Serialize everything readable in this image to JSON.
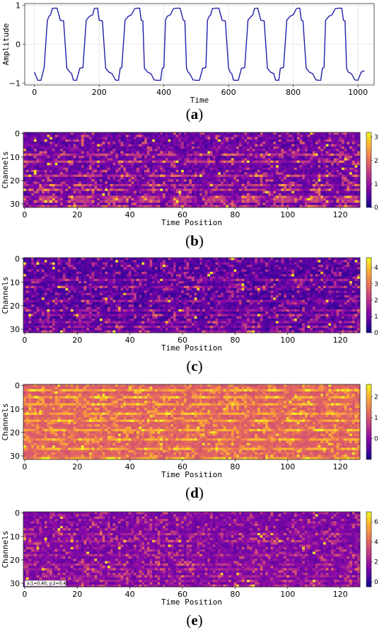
{
  "chart_data": [
    {
      "panel": "a",
      "type": "line",
      "caption": "(a)",
      "xlabel": "Time",
      "ylabel": "Amplitude",
      "xlim": [
        -30,
        1050
      ],
      "ylim": [
        -1.05,
        1.05
      ],
      "xticks": [
        "0",
        "200",
        "400",
        "600",
        "800",
        "1000"
      ],
      "yticks": [
        "−1",
        "0",
        "1"
      ],
      "grid": true,
      "color": "#1f1fa8",
      "series": [
        {
          "x": [
            0,
            10,
            20,
            30,
            40,
            45,
            50,
            55,
            60,
            70,
            80,
            90,
            100,
            110,
            115,
            120,
            125,
            130,
            140,
            150,
            160,
            170,
            180,
            185,
            190,
            195,
            200,
            210,
            220,
            230,
            240,
            250,
            255,
            260,
            265,
            270,
            280,
            290,
            300,
            310,
            320,
            325,
            330,
            335,
            340,
            350,
            360,
            370,
            380,
            390,
            395,
            400,
            405,
            410,
            420,
            430,
            440,
            450,
            460,
            465,
            470,
            475,
            480,
            490,
            500,
            510,
            520,
            530,
            535,
            540,
            545,
            550,
            560,
            570,
            580,
            590,
            600,
            605,
            610,
            615,
            620,
            630,
            640,
            650,
            660,
            670,
            675,
            680,
            685,
            690,
            700,
            710,
            720,
            730,
            740,
            745,
            750,
            755,
            760,
            770,
            780,
            790,
            800,
            810,
            815,
            820,
            825,
            830,
            840,
            850,
            860,
            870,
            880,
            885,
            890,
            895,
            900,
            910,
            920,
            930,
            940,
            950,
            955,
            960,
            965,
            970,
            980,
            990,
            1000,
            1010,
            1020
          ],
          "y": [
            -0.72,
            -0.93,
            -0.93,
            -0.6,
            0.62,
            0.72,
            0.76,
            0.92,
            0.93,
            0.93,
            0.62,
            0.6,
            -0.62,
            -0.72,
            -0.76,
            -0.92,
            -0.93,
            -0.93,
            -0.62,
            -0.6,
            0.62,
            0.72,
            0.76,
            0.92,
            0.93,
            0.93,
            0.62,
            0.6,
            -0.62,
            -0.72,
            -0.76,
            -0.92,
            -0.93,
            -0.93,
            -0.62,
            -0.6,
            0.62,
            0.72,
            0.76,
            0.92,
            0.93,
            0.93,
            0.62,
            0.6,
            -0.62,
            -0.72,
            -0.76,
            -0.92,
            -0.93,
            -0.93,
            -0.62,
            -0.6,
            0.62,
            0.72,
            0.76,
            0.92,
            0.93,
            0.93,
            0.62,
            0.6,
            -0.62,
            -0.72,
            -0.76,
            -0.92,
            -0.93,
            -0.93,
            -0.62,
            -0.6,
            0.62,
            0.72,
            0.76,
            0.92,
            0.93,
            0.93,
            0.62,
            0.6,
            -0.62,
            -0.72,
            -0.76,
            -0.92,
            -0.93,
            -0.93,
            -0.62,
            -0.6,
            0.62,
            0.72,
            0.76,
            0.92,
            0.93,
            0.93,
            0.62,
            0.6,
            -0.62,
            -0.72,
            -0.76,
            -0.92,
            -0.93,
            -0.93,
            -0.62,
            -0.6,
            0.62,
            0.72,
            0.76,
            0.92,
            0.93,
            0.93,
            0.62,
            0.6,
            -0.62,
            -0.72,
            -0.76,
            -0.92,
            -0.93,
            -0.93,
            -0.62,
            -0.6,
            0.62,
            0.72,
            0.76,
            0.92,
            0.93,
            0.93,
            0.62,
            0.6,
            -0.62,
            -0.72,
            -0.76,
            -0.92,
            -0.93,
            -0.72,
            -0.68
          ]
        }
      ]
    },
    {
      "panel": "b",
      "type": "heatmap",
      "caption": "(b)",
      "xlabel": "Time Position",
      "ylabel": "Channels",
      "rows": 32,
      "cols": 128,
      "xticks": [
        "0",
        "20",
        "40",
        "60",
        "80",
        "100",
        "120"
      ],
      "yticks": [
        "0",
        "10",
        "20",
        "30"
      ],
      "colorbar": {
        "min": 0,
        "max": 3.2,
        "ticks": [
          "0",
          "1",
          "2",
          "3"
        ],
        "tick_values": [
          0,
          1,
          2,
          3
        ]
      },
      "pattern": {
        "base": 0.35,
        "spread": 1.6,
        "bright_rows": [
          9,
          12,
          18,
          22,
          24,
          27,
          28,
          29,
          31
        ],
        "period": 12.8,
        "seed": 11
      }
    },
    {
      "panel": "c",
      "type": "heatmap",
      "caption": "(c)",
      "xlabel": "Time Position",
      "ylabel": "Channels",
      "rows": 32,
      "cols": 128,
      "xticks": [
        "0",
        "20",
        "40",
        "60",
        "80",
        "100",
        "120"
      ],
      "yticks": [
        "0",
        "10",
        "20",
        "30"
      ],
      "colorbar": {
        "min": 0,
        "max": 4.6,
        "ticks": [
          "0",
          "1",
          "2",
          "3",
          "4"
        ],
        "tick_values": [
          0,
          1,
          2,
          3,
          4
        ]
      },
      "pattern": {
        "base": 0.3,
        "spread": 2.0,
        "bright_rows": [
          9,
          12,
          18,
          22,
          24,
          27,
          29,
          31
        ],
        "period": 12.8,
        "seed": 23
      }
    },
    {
      "panel": "d",
      "type": "heatmap",
      "caption": "(d)",
      "xlabel": "Time Position",
      "ylabel": "Channels",
      "rows": 32,
      "cols": 128,
      "xticks": [
        "0",
        "20",
        "40",
        "60",
        "80",
        "100",
        "120"
      ],
      "yticks": [
        "0",
        "10",
        "20",
        "30"
      ],
      "colorbar": {
        "min": -1.0,
        "max": 2.6,
        "ticks": [
          "0",
          "1",
          "2"
        ],
        "tick_values": [
          0,
          1,
          2
        ]
      },
      "pattern": {
        "base": 0.9,
        "spread": 1.1,
        "bright_rows": [
          2,
          5,
          8,
          12,
          15,
          19,
          23,
          27,
          31
        ],
        "period": 12.8,
        "seed": 37
      }
    },
    {
      "panel": "e",
      "type": "heatmap",
      "caption": "(e)",
      "xlabel": "Time Position",
      "ylabel": "Channels",
      "rows": 32,
      "cols": 128,
      "xticks": [
        "0",
        "20",
        "40",
        "60",
        "80",
        "100",
        "120"
      ],
      "yticks": [
        "0",
        "10",
        "20",
        "30"
      ],
      "colorbar": {
        "min": -0.5,
        "max": 7.0,
        "ticks": [
          "0",
          "2",
          "4",
          "6"
        ],
        "tick_values": [
          0,
          2,
          4,
          6
        ]
      },
      "pattern": {
        "base": 0.8,
        "spread": 3.0,
        "bright_rows": [
          9,
          12,
          18,
          22,
          24,
          27,
          29,
          31
        ],
        "period": 12.8,
        "seed": 53
      },
      "annotation": "x:1=0.40, y:2=0.41"
    }
  ]
}
